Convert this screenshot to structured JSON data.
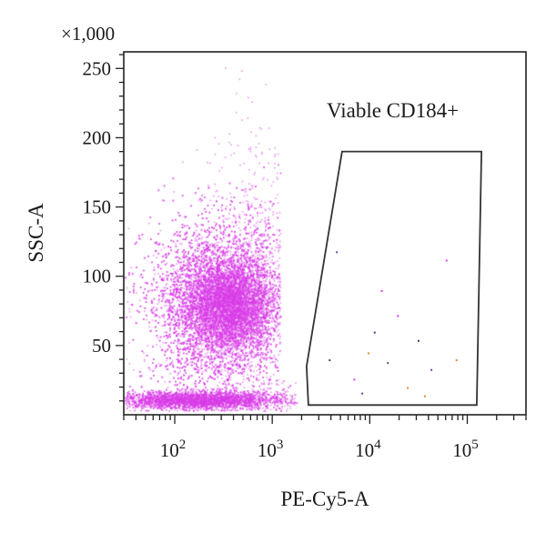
{
  "chart_data": {
    "type": "scatter",
    "xlabel": "PE-Cy5-A",
    "ylabel": "SSC-A",
    "x_scale": "log",
    "xlim": [
      30,
      400000
    ],
    "ylim": [
      0,
      262
    ],
    "y_multiplier_label": "×1,000",
    "x_ticks": [
      {
        "value": 100,
        "base": "10",
        "exp": "2"
      },
      {
        "value": 1000,
        "base": "10",
        "exp": "3"
      },
      {
        "value": 10000,
        "base": "10",
        "exp": "4"
      },
      {
        "value": 100000,
        "base": "10",
        "exp": "5"
      }
    ],
    "y_ticks": [
      {
        "value": 50,
        "label": "50"
      },
      {
        "value": 100,
        "label": "100"
      },
      {
        "value": 150,
        "label": "150"
      },
      {
        "value": 200,
        "label": "200"
      },
      {
        "value": 250,
        "label": "250"
      }
    ],
    "grid": false,
    "point_color": "#d83ce8",
    "point_color_dense": "#c020e0",
    "gate": {
      "label": "Viable CD184+",
      "color": "#333333",
      "polygon": [
        [
          5200,
          190
        ],
        [
          140000,
          190
        ],
        [
          125000,
          7
        ],
        [
          2350,
          7
        ],
        [
          2250,
          35
        ]
      ]
    },
    "populations": [
      {
        "name": "",
        "x_log_center": 2.45,
        "x_log_sd": 0.38,
        "y_center": 80,
        "y_sd": 30,
        "count": 9000
      },
      {
        "name": "",
        "x_log_center": 2.55,
        "x_log_sd": 0.22,
        "y_center": 80,
        "y_sd": 16,
        "count": 5000
      },
      {
        "name": "",
        "x_log_center": 2.25,
        "x_log_sd": 0.45,
        "y_center": 11,
        "y_sd": 3.2,
        "count": 4500
      },
      {
        "name": "",
        "x_log_center": 2.85,
        "x_log_sd": 0.3,
        "y_center": 95,
        "y_sd": 55,
        "count": 1000
      }
    ],
    "gated_events": [
      {
        "x": 4500,
        "y": 118
      },
      {
        "x": 6800,
        "y": 26
      },
      {
        "x": 9500,
        "y": 45
      },
      {
        "x": 11000,
        "y": 60
      },
      {
        "x": 15000,
        "y": 38
      },
      {
        "x": 19000,
        "y": 72
      },
      {
        "x": 24000,
        "y": 20
      },
      {
        "x": 31000,
        "y": 54
      },
      {
        "x": 42000,
        "y": 33
      },
      {
        "x": 60000,
        "y": 112
      },
      {
        "x": 76000,
        "y": 40
      },
      {
        "x": 3800,
        "y": 40
      },
      {
        "x": 8200,
        "y": 16
      },
      {
        "x": 13000,
        "y": 90
      },
      {
        "x": 36000,
        "y": 14
      }
    ]
  }
}
